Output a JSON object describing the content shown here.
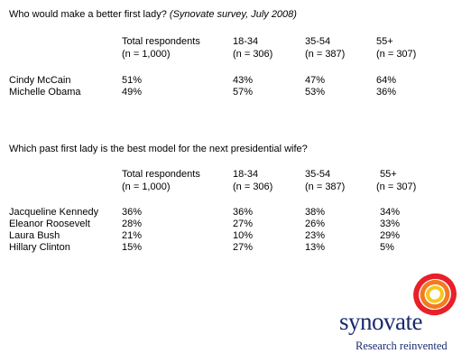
{
  "table1": {
    "title": "Who would make a better first lady?",
    "title_note": "(Synovate survey, July 2008)",
    "columns": [
      {
        "label": "Total respondents",
        "n": "(n = 1,000)"
      },
      {
        "label": "18-34",
        "n": "(n = 306)"
      },
      {
        "label": "35-54",
        "n": "(n = 387)"
      },
      {
        "label": "55+",
        "n": "(n = 307)"
      }
    ],
    "rows": [
      {
        "name": "Cindy McCain",
        "values": [
          "51%",
          "43%",
          "47%",
          "64%"
        ]
      },
      {
        "name": "Michelle Obama",
        "values": [
          "49%",
          "57%",
          "53%",
          "36%"
        ]
      }
    ]
  },
  "table2": {
    "title": "Which past first lady is the best model for the next presidential wife?",
    "columns": [
      {
        "label": "Total respondents",
        "n": "(n = 1,000)"
      },
      {
        "label": "18-34",
        "n": "(n = 306)"
      },
      {
        "label": "35-54",
        "n": "(n = 387)"
      },
      {
        "label": "55+",
        "n": "(n = 307)"
      }
    ],
    "rows": [
      {
        "name": "Jacqueline Kennedy",
        "values": [
          "36%",
          "36%",
          "38%",
          "34%"
        ]
      },
      {
        "name": "Eleanor Roosevelt",
        "values": [
          "28%",
          "27%",
          "26%",
          "33%"
        ]
      },
      {
        "name": "Laura Bush",
        "values": [
          "21%",
          "10%",
          "23%",
          "29%"
        ]
      },
      {
        "name": "Hillary Clinton",
        "values": [
          "15%",
          "27%",
          "13%",
          "5%"
        ]
      }
    ]
  },
  "logo": {
    "brand": "synovate",
    "tagline": "Research reinvented",
    "colors": {
      "outer": "#e8202a",
      "middle": "#f47a20",
      "inner": "#f7c51c",
      "text": "#1a2a6c"
    }
  }
}
